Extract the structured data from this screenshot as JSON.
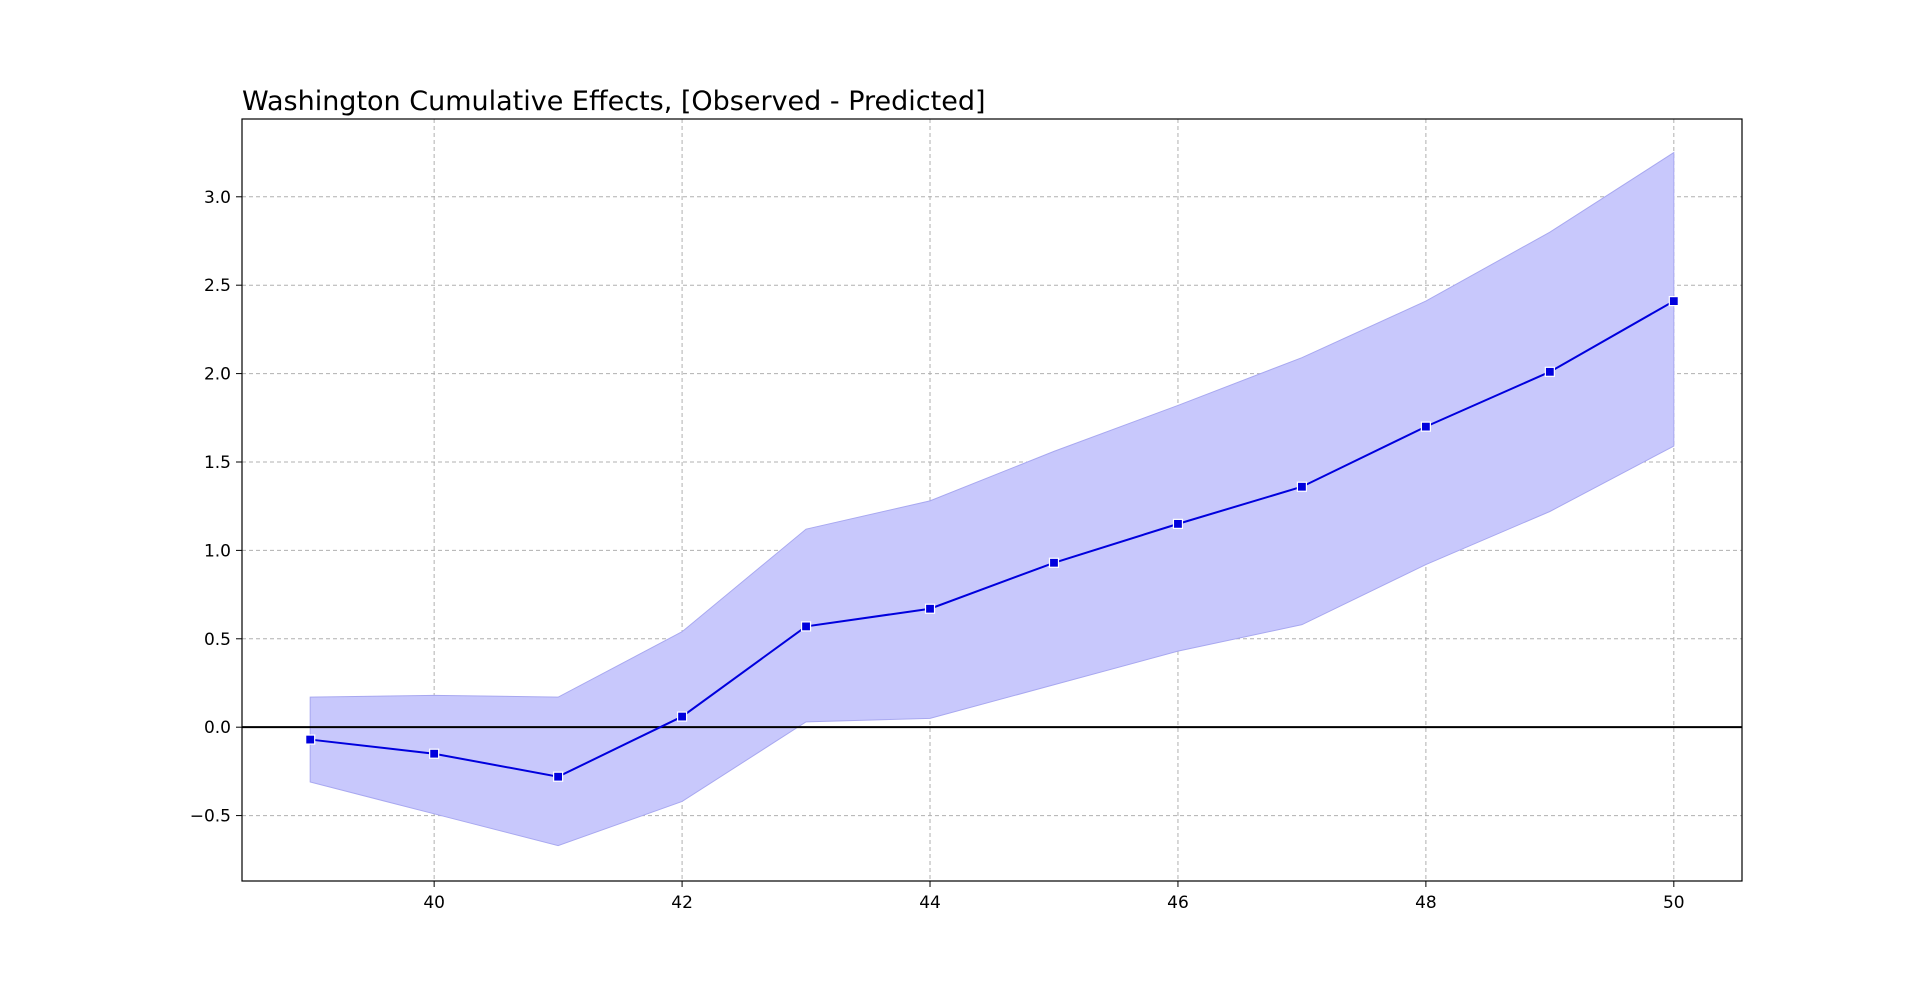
{
  "chart_data": {
    "type": "line",
    "title": "Washington Cumulative Effects, [Observed - Predicted]",
    "xlabel": "",
    "ylabel": "",
    "xlim": [
      38.45,
      50.55
    ],
    "ylim": [
      -0.87,
      3.44
    ],
    "x_ticks": [
      40,
      42,
      44,
      46,
      48,
      50
    ],
    "y_ticks": [
      -0.5,
      0.0,
      0.5,
      1.0,
      1.5,
      2.0,
      2.5,
      3.0
    ],
    "x_tick_labels": [
      "40",
      "42",
      "44",
      "46",
      "48",
      "50"
    ],
    "y_tick_labels": [
      "−0.5",
      "0.0",
      "0.5",
      "1.0",
      "1.5",
      "2.0",
      "2.5",
      "3.0"
    ],
    "grid": true,
    "reference_line_y": 0.0,
    "x": [
      39,
      40,
      41,
      42,
      43,
      44,
      45,
      46,
      47,
      48,
      49,
      50
    ],
    "series": [
      {
        "values": [
          -0.07,
          -0.15,
          -0.28,
          0.06,
          0.57,
          0.67,
          0.93,
          1.15,
          1.36,
          1.7,
          2.01,
          2.41
        ],
        "lower": [
          -0.31,
          -0.49,
          -0.67,
          -0.42,
          0.03,
          0.05,
          0.24,
          0.43,
          0.58,
          0.92,
          1.22,
          1.59
        ],
        "upper": [
          0.17,
          0.18,
          0.17,
          0.54,
          1.12,
          1.28,
          1.56,
          1.82,
          2.09,
          2.41,
          2.8,
          3.25
        ],
        "color": "#0000dd",
        "band_color": "#c8c8fc"
      }
    ]
  }
}
